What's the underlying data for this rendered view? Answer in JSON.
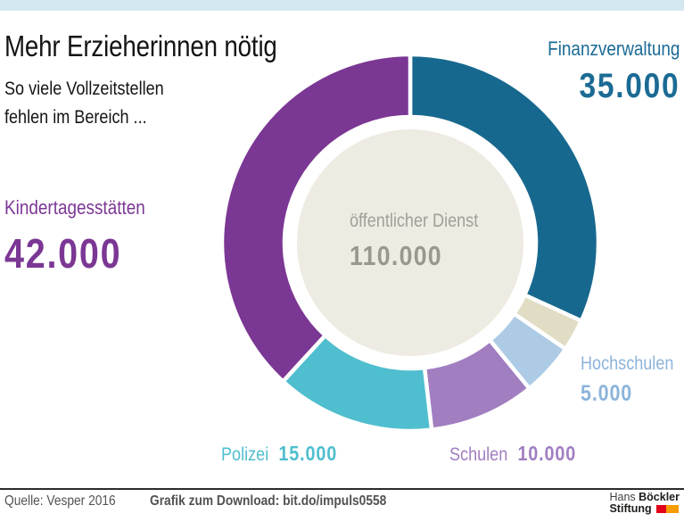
{
  "page": {
    "background": "#FFFFFF",
    "topbar_color": "#D4E8F2"
  },
  "chart_data": {
    "type": "donut",
    "title": "Mehr Erzieherinnen nötig",
    "subtitle_line1": "So viele Vollzeitstellen",
    "subtitle_line2": "fehlen im Bereich ...",
    "center": {
      "label": "öffentlicher Dienst",
      "value": 110000,
      "display": "110.000",
      "disc_color": "#EDEBE2",
      "label_color": "#A0A098",
      "value_color": "#98988F"
    },
    "start_angle_deg": 0,
    "direction": "clockwise",
    "total": 110000,
    "outer_radius_px": 211,
    "inner_radius_px": 141,
    "segments": [
      {
        "label": "Finanzverwaltung",
        "value": 35000,
        "display": "35.000",
        "color": "#17688E",
        "label_color": "#1B6B94"
      },
      {
        "label": "",
        "value": 3000,
        "display": "",
        "color": "#E1DCC4",
        "label_color": "#E1DCC4"
      },
      {
        "label": "Hochschulen",
        "value": 5000,
        "display": "5.000",
        "color": "#AECBE5",
        "label_color": "#8CB4DB"
      },
      {
        "label": "Schulen",
        "value": 10000,
        "display": "10.000",
        "color": "#A17EC0",
        "label_color": "#A17EC0"
      },
      {
        "label": "Polizei",
        "value": 15000,
        "display": "15.000",
        "color": "#4FBECE",
        "label_color": "#4FBECE"
      },
      {
        "label": "Kindertagesstätten",
        "value": 42000,
        "display": "42.000",
        "color": "#7B3794",
        "label_color": "#7B3794"
      }
    ],
    "grid": false,
    "legend": "callout labels around donut"
  },
  "footer": {
    "source": "Quelle: Vesper 2016",
    "download": "Grafik zum Download: bit.do/impuls0558",
    "logo": {
      "name_regular": "Hans",
      "name_bold": "Böckler",
      "line2_bold": "Stiftung",
      "mark_red": "#E2001A",
      "mark_orange": "#F59C00"
    }
  }
}
